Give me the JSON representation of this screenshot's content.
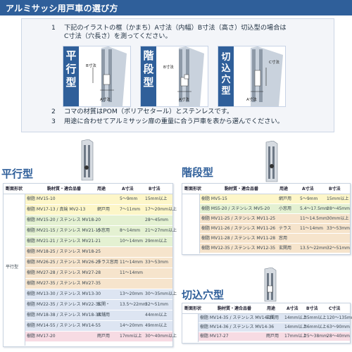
{
  "header": {
    "title": "アルミサッシ用戸車の選び方"
  },
  "instructions": {
    "steps": [
      {
        "num": "1",
        "lines": [
          "下記のイラストの框（かまち）A寸法（内幅）B寸法（高さ）切込型の場合は",
          "C寸法（穴長さ）を測ってください。"
        ]
      },
      {
        "num": "2",
        "lines": [
          "コマの材質はPOM（ポリアセタール）とステンレスです。"
        ]
      },
      {
        "num": "3",
        "lines": [
          "用途に合わせてアルミサッシ扉の重量に合う戸車を表から選んでください。"
        ]
      }
    ],
    "types": [
      {
        "name_chars": [
          "平",
          "行",
          "型"
        ],
        "a_label": "A寸法",
        "b_label": "B寸法"
      },
      {
        "name_chars": [
          "階",
          "段",
          "型"
        ],
        "a_label": "A寸法",
        "b_label": "B寸法"
      },
      {
        "name_chars": [
          "切",
          "込",
          "穴",
          "型"
        ],
        "a_label": "A寸法",
        "c_label": "C寸法"
      }
    ]
  },
  "parallel": {
    "title": "平行型",
    "headers": [
      "断面形状",
      "駒材質・適合品番",
      "用途",
      "A寸法",
      "B寸法"
    ],
    "shape_label": "平行型",
    "rows": [
      {
        "part": "樹脂 MV15-10",
        "use": "",
        "a": "5〜9mm",
        "b": "15mm以上",
        "color": "#fdf6c8"
      },
      {
        "part": "樹脂 MV17-13 / 真鍮 MV2-13",
        "use": "網戸用",
        "a": "7〜11mm",
        "b": "17〜20mm以上",
        "color": "#fdf6c8"
      },
      {
        "part": "樹脂 MV15-20 / ステンレス MV18-20",
        "use": "",
        "a": "",
        "b": "28〜45mm",
        "color": "#e4f1d2"
      },
      {
        "part": "樹脂 MV21-15 / ステンレス MV21-15",
        "use": "小窓用",
        "a": "8〜14mm",
        "b": "21〜27mm以上",
        "color": "#e4f1d2"
      },
      {
        "part": "樹脂 MV21-21 / ステンレス MV21-21",
        "use": "",
        "a": "10〜14mm",
        "b": "29mm以上",
        "color": "#e4f1d2"
      },
      {
        "part": "樹脂 MV18-25 / ステンレス MV18-25",
        "use": "",
        "a": "",
        "b": "",
        "color": "#f6e4cc"
      },
      {
        "part": "樹脂 MV26-25 / ステンレス MV26-25",
        "use": "テラス窓用",
        "a": "11〜14mm",
        "b": "33〜53mm",
        "color": "#f6e4cc"
      },
      {
        "part": "樹脂 MV27-28 / ステンレス MV27-28",
        "use": "",
        "a": "11〜14mm",
        "b": "",
        "color": "#f6e4cc"
      },
      {
        "part": "樹脂 MV27-35 / ステンレス MV27-35",
        "use": "",
        "a": "",
        "b": "",
        "color": "#f6e4cc"
      },
      {
        "part": "樹脂 MV13-30 / ステンレス MV13-30",
        "use": "",
        "a": "13〜20mm",
        "b": "30〜35mm以上",
        "color": "#dde5f2"
      },
      {
        "part": "樹脂 MV22-35 / ステンレス MV22-35",
        "use": "玄関・",
        "a": "13.5〜22mm",
        "b": "32〜51mm",
        "color": "#dde5f2"
      },
      {
        "part": "樹脂 MV18-38 / ステンレス MV18-38",
        "use": "店舗用",
        "a": "",
        "b": "44mm以上",
        "color": "#dde5f2"
      },
      {
        "part": "樹脂 MV14-55 / ステンレス MV14-55",
        "use": "",
        "a": "14〜20mm",
        "b": "49mm以上",
        "color": "#dde5f2"
      },
      {
        "part": "樹脂 MV17-20",
        "use": "雨戸用",
        "a": "17mm以上",
        "b": "30〜40mm以上",
        "color": "#f7dbe3"
      }
    ]
  },
  "stepped": {
    "title": "階段型",
    "headers": [
      "断面形状",
      "駒材質・適合品番",
      "用途",
      "A寸法",
      "B寸法"
    ],
    "rows": [
      {
        "part": "樹脂 MV5-15",
        "use": "網戸用",
        "a": "5〜9mm",
        "b": "15mm以上",
        "color": "#fdf6c8"
      },
      {
        "part": "樹脂 MS5-20 / ステンレス MV5-20",
        "use": "小窓用",
        "a": "5.4〜17.5mm",
        "b": "28〜45mm",
        "color": "#e4f1d2"
      },
      {
        "part": "樹脂 MV11-25 / ステンレス MV11-25",
        "use": "",
        "a": "11〜14.5mm",
        "b": "30mm以上",
        "color": "#f6e4cc"
      },
      {
        "part": "樹脂 MV11-26 / ステンレス MV11-26",
        "use": "テラス",
        "a": "11〜14mm",
        "b": "33〜53mm",
        "color": "#f6e4cc"
      },
      {
        "part": "樹脂 MV11-28 / ステンレス MV11-28",
        "use": "窓用",
        "a": "",
        "b": "",
        "color": "#f6e4cc"
      },
      {
        "part": "樹脂 MV12-35 / ステンレス MV12-35",
        "use": "玄関用",
        "a": "13.5〜22mm",
        "b": "32〜51mm",
        "color": "#f6e4cc"
      }
    ]
  },
  "cutin": {
    "title": "切込穴型",
    "headers": [
      "断面形状",
      "駒材質・適合品番",
      "用途",
      "A寸法",
      "B寸法",
      "C寸法"
    ],
    "rows": [
      {
        "part": "樹脂 MV14-35 / ステンレス MV14-35",
        "use": "玄関用",
        "a": "14mm以上",
        "b": "35mm以上",
        "c": "120〜135mm",
        "color": "#dde5f2"
      },
      {
        "part": "樹脂 MV14-36 / ステンレス MV14-36",
        "use": "",
        "a": "14mm以上",
        "b": "36mm以上",
        "c": "63〜90mm",
        "color": "#dde5f2"
      },
      {
        "part": "樹脂 MV17-27",
        "use": "雨戸用",
        "a": "17mm以上",
        "b": "25〜38mm",
        "c": "28〜40mm",
        "color": "#f7dbe3"
      }
    ]
  },
  "colors": {
    "brand": "#2f5f9a"
  }
}
